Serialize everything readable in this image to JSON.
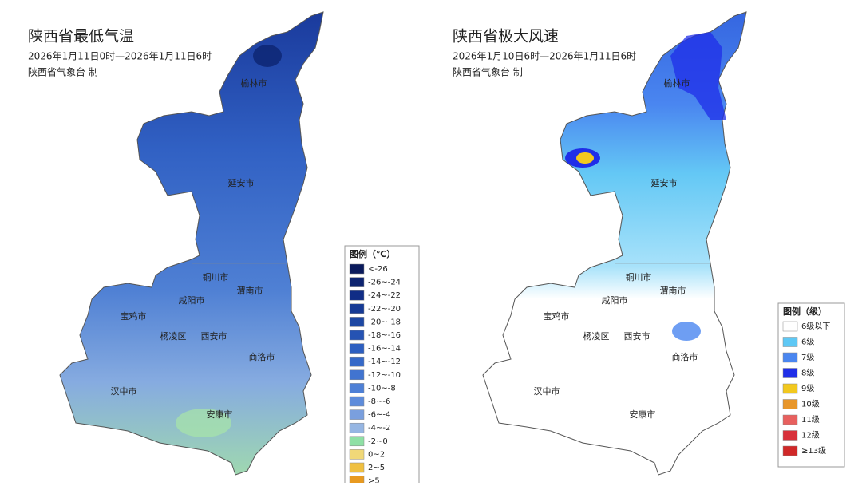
{
  "panels": [
    {
      "title": "陕西省最低气温",
      "period": "2026年1月11日0时—2026年1月11日6时",
      "issuer": "陕西省气象台  制",
      "cities": [
        "榆林市",
        "延安市",
        "铜川市",
        "咸阳市",
        "渭南市",
        "宝鸡市",
        "杨凌区",
        "西安市",
        "商洛市",
        "汉中市",
        "安康市"
      ],
      "legend": {
        "title": "图例（℃）",
        "items": [
          {
            "label": "<-26",
            "color": "#0a1a5c"
          },
          {
            "label": "-26~-24",
            "color": "#0d2470"
          },
          {
            "label": "-24~-22",
            "color": "#102d86"
          },
          {
            "label": "-22~-20",
            "color": "#163a95"
          },
          {
            "label": "-20~-18",
            "color": "#1d47a3"
          },
          {
            "label": "-18~-16",
            "color": "#2553b3"
          },
          {
            "label": "-16~-14",
            "color": "#2d5fc0"
          },
          {
            "label": "-14~-12",
            "color": "#3669c8"
          },
          {
            "label": "-12~-10",
            "color": "#4174d0"
          },
          {
            "label": "-10~-8",
            "color": "#4e80d6"
          },
          {
            "label": "-8~-6",
            "color": "#5e8cdb"
          },
          {
            "label": "-6~-4",
            "color": "#7a9fde"
          },
          {
            "label": "-4~-2",
            "color": "#96b6e3"
          },
          {
            "label": "-2~0",
            "color": "#8fe0a5"
          },
          {
            "label": "0~2",
            "color": "#f0d878"
          },
          {
            "label": "2~5",
            "color": "#f0c040"
          },
          {
            "label": ">5",
            "color": "#e89a20"
          }
        ]
      }
    },
    {
      "title": "陕西省极大风速",
      "period": "2026年1月10日6时—2026年1月11日6时",
      "issuer": "陕西省气象台  制",
      "cities": [
        "榆林市",
        "延安市",
        "铜川市",
        "咸阳市",
        "渭南市",
        "宝鸡市",
        "杨凌区",
        "西安市",
        "商洛市",
        "汉中市",
        "安康市"
      ],
      "legend": {
        "title": "图例（级）",
        "items": [
          {
            "label": "6级以下",
            "color": "#ffffff"
          },
          {
            "label": "6级",
            "color": "#5ec8f5"
          },
          {
            "label": "7级",
            "color": "#4a86f0"
          },
          {
            "label": "8级",
            "color": "#1f2ee8"
          },
          {
            "label": "9级",
            "color": "#f2c81e"
          },
          {
            "label": "10级",
            "color": "#e8962a"
          },
          {
            "label": "11级",
            "color": "#e8605e"
          },
          {
            "label": "12级",
            "color": "#d8303a"
          },
          {
            "label": "≥13级",
            "color": "#d02828"
          }
        ]
      }
    }
  ]
}
